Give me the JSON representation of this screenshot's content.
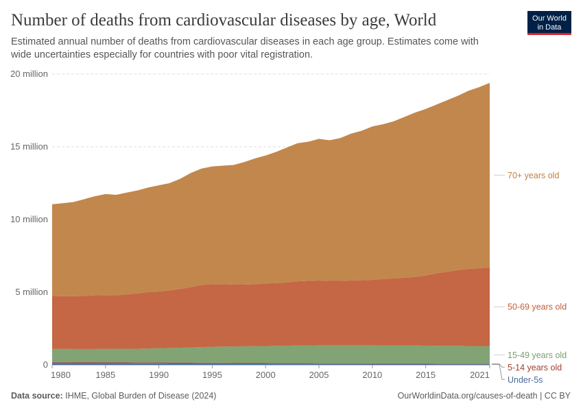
{
  "chart_data": {
    "type": "stacked-area",
    "title": "Number of deaths from cardiovascular diseases by age, World",
    "subtitle": "Estimated annual number of deaths from cardiovascular diseases in each age group. Estimates come with wide uncertainties especially for countries with poor vital registration.",
    "logo": [
      "Our World",
      "in Data"
    ],
    "source_label": "Data source:",
    "source": "IHME, Global Burden of Disease (2024)",
    "url": "OurWorldinData.org/causes-of-death | CC BY",
    "x": [
      1980,
      1981,
      1982,
      1983,
      1984,
      1985,
      1986,
      1987,
      1988,
      1989,
      1990,
      1991,
      1992,
      1993,
      1994,
      1995,
      1996,
      1997,
      1998,
      1999,
      2000,
      2001,
      2002,
      2003,
      2004,
      2005,
      2006,
      2007,
      2008,
      2009,
      2010,
      2011,
      2012,
      2013,
      2014,
      2015,
      2016,
      2017,
      2018,
      2019,
      2020,
      2021
    ],
    "xlim": [
      1980,
      2021
    ],
    "xticks": [
      1980,
      1985,
      1990,
      1995,
      2000,
      2005,
      2010,
      2015,
      2021
    ],
    "ylim": [
      0,
      20
    ],
    "yticks": [
      {
        "value": 0,
        "label": "0"
      },
      {
        "value": 5,
        "label": "5 million"
      },
      {
        "value": 10,
        "label": "10 million"
      },
      {
        "value": 15,
        "label": "15 million"
      },
      {
        "value": 20,
        "label": "20 million"
      }
    ],
    "grid": true,
    "series": [
      {
        "name": "Under-5s",
        "color": "#4c6a9c",
        "values": [
          0.16,
          0.16,
          0.15,
          0.15,
          0.15,
          0.14,
          0.14,
          0.14,
          0.13,
          0.13,
          0.13,
          0.12,
          0.12,
          0.12,
          0.11,
          0.11,
          0.11,
          0.1,
          0.1,
          0.1,
          0.1,
          0.09,
          0.09,
          0.09,
          0.09,
          0.08,
          0.08,
          0.08,
          0.08,
          0.08,
          0.07,
          0.07,
          0.07,
          0.07,
          0.07,
          0.07,
          0.06,
          0.06,
          0.06,
          0.06,
          0.06,
          0.06
        ]
      },
      {
        "name": "5-14 years old",
        "color": "#a2402f",
        "values": [
          0.04,
          0.04,
          0.04,
          0.04,
          0.04,
          0.04,
          0.04,
          0.04,
          0.04,
          0.04,
          0.04,
          0.04,
          0.04,
          0.04,
          0.04,
          0.04,
          0.04,
          0.04,
          0.04,
          0.04,
          0.04,
          0.03,
          0.03,
          0.03,
          0.03,
          0.03,
          0.03,
          0.03,
          0.03,
          0.03,
          0.03,
          0.03,
          0.03,
          0.03,
          0.03,
          0.03,
          0.03,
          0.03,
          0.03,
          0.03,
          0.03,
          0.03
        ]
      },
      {
        "name": "15-49 years old",
        "color": "#7b9e6b",
        "values": [
          0.9,
          0.9,
          0.9,
          0.9,
          0.9,
          0.92,
          0.92,
          0.92,
          0.94,
          0.96,
          0.98,
          1.0,
          1.02,
          1.04,
          1.07,
          1.1,
          1.11,
          1.13,
          1.14,
          1.15,
          1.16,
          1.19,
          1.2,
          1.21,
          1.22,
          1.24,
          1.24,
          1.24,
          1.24,
          1.24,
          1.25,
          1.24,
          1.24,
          1.24,
          1.23,
          1.22,
          1.22,
          1.22,
          1.22,
          1.21,
          1.21,
          1.21
        ]
      },
      {
        "name": "50-69 years old",
        "color": "#c25e3a",
        "values": [
          3.65,
          3.62,
          3.63,
          3.66,
          3.69,
          3.7,
          3.68,
          3.75,
          3.81,
          3.87,
          3.9,
          3.96,
          4.04,
          4.15,
          4.28,
          4.3,
          4.29,
          4.25,
          4.24,
          4.26,
          4.3,
          4.31,
          4.36,
          4.42,
          4.44,
          4.45,
          4.43,
          4.43,
          4.45,
          4.47,
          4.5,
          4.56,
          4.61,
          4.66,
          4.72,
          4.83,
          4.99,
          5.09,
          5.21,
          5.3,
          5.35,
          5.4
        ]
      },
      {
        "name": "70+ years old",
        "color": "#bf8142",
        "values": [
          6.3,
          6.4,
          6.48,
          6.65,
          6.82,
          6.95,
          6.92,
          7.0,
          7.08,
          7.2,
          7.3,
          7.38,
          7.58,
          7.85,
          8.0,
          8.1,
          8.15,
          8.23,
          8.43,
          8.65,
          8.8,
          9.03,
          9.27,
          9.5,
          9.57,
          9.75,
          9.67,
          9.82,
          10.1,
          10.28,
          10.55,
          10.65,
          10.8,
          11.05,
          11.3,
          11.45,
          11.6,
          11.8,
          11.98,
          12.25,
          12.45,
          12.7
        ]
      }
    ]
  }
}
